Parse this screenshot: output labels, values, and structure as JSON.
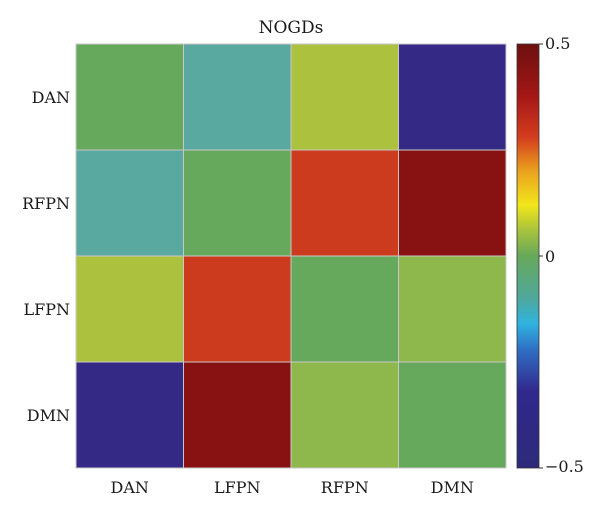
{
  "chart_data": {
    "type": "heatmap",
    "title": "NOGDs",
    "xlabel": "",
    "ylabel": "",
    "x_categories": [
      "DAN",
      "LFPN",
      "RFPN",
      "DMN"
    ],
    "y_categories": [
      "DAN",
      "RFPN",
      "LFPN",
      "DMN"
    ],
    "values": [
      [
        0.0,
        -0.14,
        0.11,
        -0.5
      ],
      [
        -0.14,
        0.0,
        0.32,
        0.45
      ],
      [
        0.11,
        0.32,
        0.0,
        0.07
      ],
      [
        -0.5,
        0.45,
        0.07,
        0.0
      ]
    ],
    "colorbar": {
      "min": -0.5,
      "max": 0.5,
      "tick_values": [
        0.5,
        0,
        -0.5
      ],
      "tick_labels": [
        "0.5",
        "0",
        "−0.5"
      ],
      "colormap": "jet-like",
      "stops": [
        {
          "t": 0.0,
          "color": "#2e2a7a"
        },
        {
          "t": 0.18,
          "color": "#30288c"
        },
        {
          "t": 0.28,
          "color": "#2f6fc4"
        },
        {
          "t": 0.34,
          "color": "#2fb3e0"
        },
        {
          "t": 0.4,
          "color": "#4fa89c"
        },
        {
          "t": 0.5,
          "color": "#67a85a"
        },
        {
          "t": 0.56,
          "color": "#a8c23c"
        },
        {
          "t": 0.62,
          "color": "#f2e61a"
        },
        {
          "t": 0.7,
          "color": "#eaa21e"
        },
        {
          "t": 0.78,
          "color": "#d43c1e"
        },
        {
          "t": 0.88,
          "color": "#a21616"
        },
        {
          "t": 1.0,
          "color": "#6e1010"
        }
      ]
    },
    "grid": false,
    "cell_border_color": "#c8c8c8",
    "cell_colors": [
      [
        "#66a85c",
        "#5aa9a0",
        "#acc23e",
        "#342a85"
      ],
      [
        "#5aa9a0",
        "#66a85c",
        "#cd3b1e",
        "#881212"
      ],
      [
        "#acc23e",
        "#cd3b1e",
        "#66a85c",
        "#8fb84c"
      ],
      [
        "#342a85",
        "#881212",
        "#8fb84c",
        "#66a85c"
      ]
    ]
  }
}
